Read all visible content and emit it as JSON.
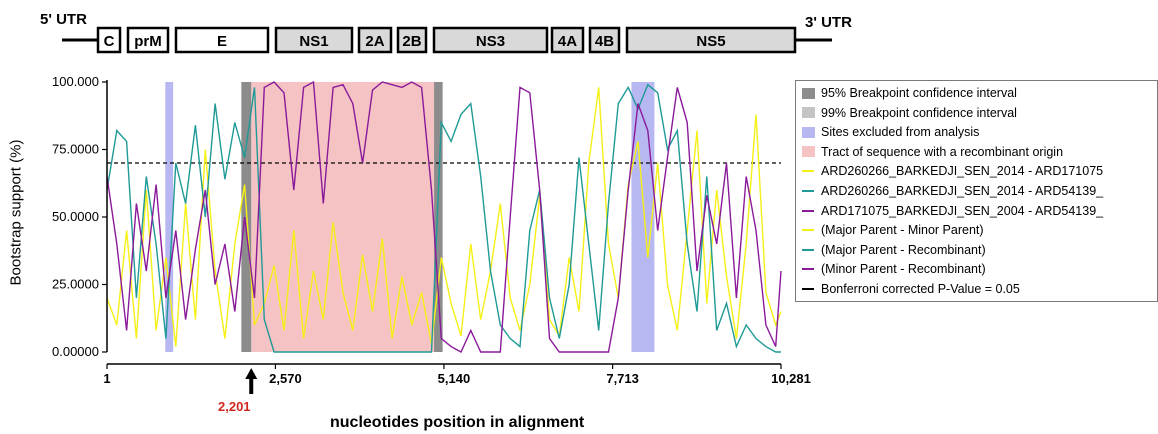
{
  "genome_map": {
    "utr5": "5' UTR",
    "utr3": "3' UTR",
    "segments": [
      {
        "label": "C",
        "shaded": false
      },
      {
        "label": "prM",
        "shaded": false
      },
      {
        "label": "E",
        "shaded": false
      },
      {
        "label": "NS1",
        "shaded": true
      },
      {
        "label": "2A",
        "shaded": true
      },
      {
        "label": "2B",
        "shaded": true
      },
      {
        "label": "NS3",
        "shaded": true
      },
      {
        "label": "4A",
        "shaded": true
      },
      {
        "label": "4B",
        "shaded": true
      },
      {
        "label": "NS5",
        "shaded": true
      }
    ]
  },
  "colors": {
    "series_major_minor": "#f5f017",
    "series_major_recomb": "#1f9a96",
    "series_minor_recomb": "#8a1a9a",
    "ci95": "#8c8c8c",
    "ci99": "#c4c4c4",
    "excluded": "#b7b7f2",
    "tract": "#f5c3c3",
    "breakpoint_label": "#d0281f"
  },
  "legend": {
    "items": [
      {
        "label": "95% Breakpoint confidence interval",
        "kind": "swatch",
        "color": "#8c8c8c"
      },
      {
        "label": "99% Breakpoint confidence interval",
        "kind": "swatch",
        "color": "#c4c4c4"
      },
      {
        "label": "Sites excluded from analysis",
        "kind": "swatch",
        "color": "#b7b7f2"
      },
      {
        "label": "Tract of sequence with a recombinant origin",
        "kind": "swatch",
        "color": "#f5c3c3"
      },
      {
        "label": "ARD260266_BARKEDJI_SEN_2014 - ARD171075",
        "kind": "line",
        "color": "#f5f017"
      },
      {
        "label": "ARD260266_BARKEDJI_SEN_2014 - ARD54139_",
        "kind": "line",
        "color": "#1f9a96"
      },
      {
        "label": "ARD171075_BARKEDJI_SEN_2004 - ARD54139_",
        "kind": "line",
        "color": "#8a1a9a"
      },
      {
        "label": "(Major Parent - Minor Parent)",
        "kind": "line",
        "color": "#f5f017"
      },
      {
        "label": "(Major Parent - Recombinant)",
        "kind": "line",
        "color": "#1f9a96"
      },
      {
        "label": "(Minor Parent - Recombinant)",
        "kind": "line",
        "color": "#8a1a9a"
      },
      {
        "label": "Bonferroni corrected P-Value = 0.05",
        "kind": "dash",
        "color": "#000000"
      }
    ]
  },
  "chart_data": {
    "type": "line",
    "xlabel": "nucleotides position in alignment",
    "ylabel": "Bootstrap support (%)",
    "xlim": [
      1,
      10281
    ],
    "ylim": [
      0,
      100
    ],
    "x_ticks": [
      "1",
      "2,570",
      "5,140",
      "7,713",
      "10,281"
    ],
    "y_ticks": [
      "0.00000",
      "25.0000",
      "50.0000",
      "75.0000",
      "100.000"
    ],
    "threshold": 70,
    "breakpoint_marker": "2,201",
    "regions": {
      "tract": [
        2201,
        5000
      ],
      "ci95": [
        [
          2050,
          2201
        ],
        [
          4990,
          5120
        ]
      ],
      "excluded": [
        [
          890,
          1010
        ],
        [
          8000,
          8350
        ]
      ]
    },
    "series": [
      {
        "key": "major_minor",
        "color": "#f5f017",
        "x": [
          1,
          150,
          300,
          450,
          600,
          750,
          900,
          1050,
          1200,
          1350,
          1500,
          1650,
          1800,
          1950,
          2100,
          2250,
          2400,
          2550,
          2700,
          2850,
          3000,
          3150,
          3300,
          3450,
          3600,
          3750,
          3900,
          4050,
          4200,
          4350,
          4500,
          4650,
          4800,
          4950,
          5100,
          5250,
          5400,
          5550,
          5700,
          5850,
          6000,
          6150,
          6300,
          6450,
          6600,
          6750,
          6900,
          7050,
          7200,
          7350,
          7500,
          7650,
          7800,
          7950,
          8100,
          8250,
          8400,
          8550,
          8700,
          8850,
          9000,
          9150,
          9300,
          9450,
          9600,
          9750,
          9900,
          10050,
          10200,
          10281
        ],
        "y": [
          20,
          10,
          45,
          5,
          60,
          8,
          35,
          2,
          55,
          12,
          75,
          30,
          5,
          40,
          62,
          10,
          18,
          32,
          8,
          45,
          5,
          30,
          12,
          48,
          22,
          8,
          36,
          15,
          42,
          5,
          28,
          10,
          22,
          3,
          35,
          18,
          6,
          40,
          12,
          30,
          55,
          20,
          8,
          25,
          58,
          12,
          6,
          35,
          15,
          70,
          98,
          40,
          20,
          62,
          78,
          35,
          70,
          25,
          8,
          45,
          82,
          18,
          60,
          28,
          5,
          40,
          88,
          22,
          10,
          15
        ]
      },
      {
        "key": "major_recomb",
        "color": "#1f9a96",
        "x": [
          1,
          150,
          300,
          450,
          600,
          750,
          900,
          1050,
          1200,
          1350,
          1500,
          1650,
          1800,
          1950,
          2100,
          2250,
          2400,
          2550,
          2700,
          2850,
          3000,
          3150,
          3300,
          3450,
          3600,
          3750,
          3900,
          4050,
          4200,
          4350,
          4500,
          4650,
          4800,
          4950,
          5100,
          5250,
          5400,
          5550,
          5700,
          5850,
          6000,
          6150,
          6300,
          6450,
          6600,
          6750,
          6900,
          7050,
          7200,
          7350,
          7500,
          7650,
          7800,
          7950,
          8100,
          8250,
          8400,
          8550,
          8700,
          8850,
          9000,
          9150,
          9300,
          9450,
          9600,
          9750,
          9900,
          10050,
          10200,
          10281
        ],
        "y": [
          60,
          82,
          78,
          20,
          65,
          40,
          5,
          70,
          55,
          84,
          50,
          92,
          64,
          85,
          72,
          98,
          12,
          0,
          0,
          0,
          0,
          0,
          0,
          0,
          0,
          0,
          0,
          0,
          0,
          0,
          0,
          0,
          0,
          0,
          85,
          78,
          88,
          92,
          65,
          30,
          10,
          5,
          2,
          45,
          60,
          20,
          5,
          25,
          72,
          40,
          8,
          55,
          92,
          98,
          90,
          99,
          96,
          75,
          82,
          40,
          15,
          65,
          8,
          18,
          2,
          10,
          5,
          2,
          0,
          0
        ]
      },
      {
        "key": "minor_recomb",
        "color": "#8a1a9a",
        "x": [
          1,
          150,
          300,
          450,
          600,
          750,
          900,
          1050,
          1200,
          1350,
          1500,
          1650,
          1800,
          1950,
          2100,
          2250,
          2400,
          2550,
          2700,
          2850,
          3000,
          3150,
          3300,
          3450,
          3600,
          3750,
          3900,
          4050,
          4200,
          4350,
          4500,
          4650,
          4800,
          4950,
          5100,
          5250,
          5400,
          5550,
          5700,
          5850,
          6000,
          6150,
          6300,
          6450,
          6600,
          6750,
          6900,
          7050,
          7200,
          7350,
          7500,
          7650,
          7800,
          7950,
          8100,
          8250,
          8400,
          8550,
          8700,
          8850,
          9000,
          9150,
          9300,
          9450,
          9600,
          9750,
          9900,
          10050,
          10200,
          10281
        ],
        "y": [
          65,
          40,
          8,
          55,
          30,
          62,
          20,
          45,
          12,
          38,
          60,
          25,
          40,
          15,
          50,
          20,
          98,
          100,
          96,
          60,
          98,
          100,
          55,
          98,
          99,
          92,
          70,
          97,
          100,
          99,
          98,
          100,
          98,
          60,
          5,
          2,
          0,
          8,
          0,
          0,
          0,
          50,
          98,
          96,
          60,
          5,
          0,
          0,
          0,
          0,
          0,
          0,
          20,
          60,
          92,
          82,
          45,
          72,
          98,
          85,
          30,
          58,
          40,
          70,
          20,
          65,
          45,
          10,
          2,
          30
        ]
      }
    ]
  }
}
